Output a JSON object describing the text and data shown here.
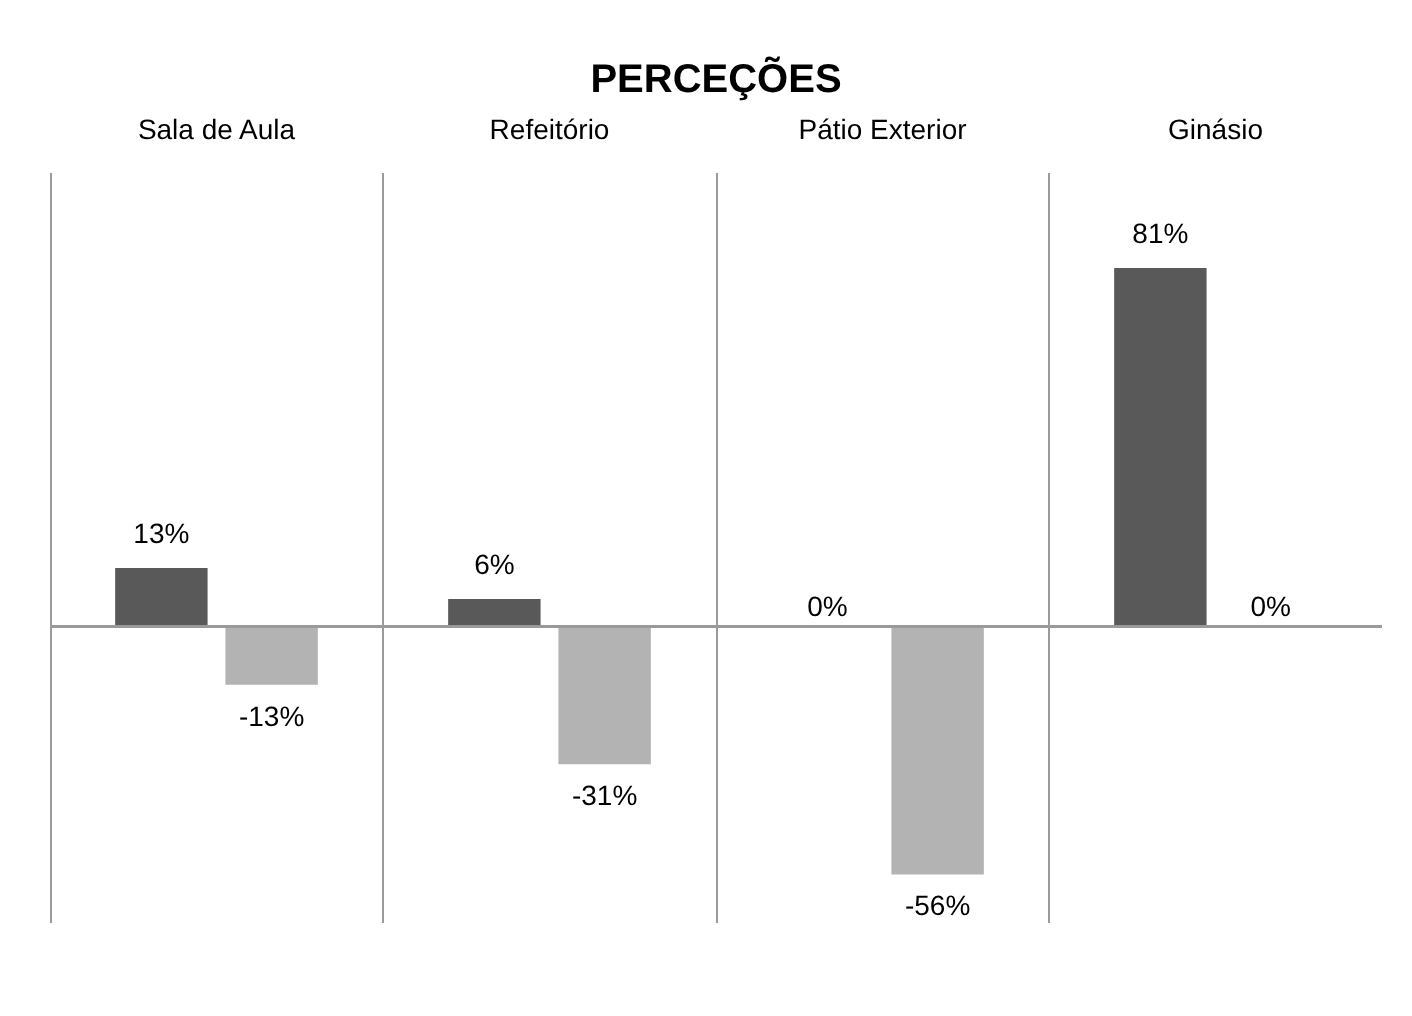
{
  "chart_data": {
    "type": "bar",
    "title": "PERCEÇÕES",
    "categories": [
      "Sala de Aula",
      "Refeitório",
      "Pátio Exterior",
      "Ginásio"
    ],
    "series": [
      {
        "color": "#595959",
        "values": [
          13,
          6,
          0,
          81
        ],
        "value_labels": [
          "13%",
          "6%",
          "0%",
          "81%"
        ]
      },
      {
        "color": "#b3b3b3",
        "values": [
          -13,
          -31,
          -56,
          0
        ],
        "value_labels": [
          "-13%",
          "-31%",
          "-56%",
          "0%"
        ]
      }
    ],
    "ylim": [
      -67,
      103
    ],
    "grid": "x",
    "tick_labels": "x",
    "legend": false
  }
}
